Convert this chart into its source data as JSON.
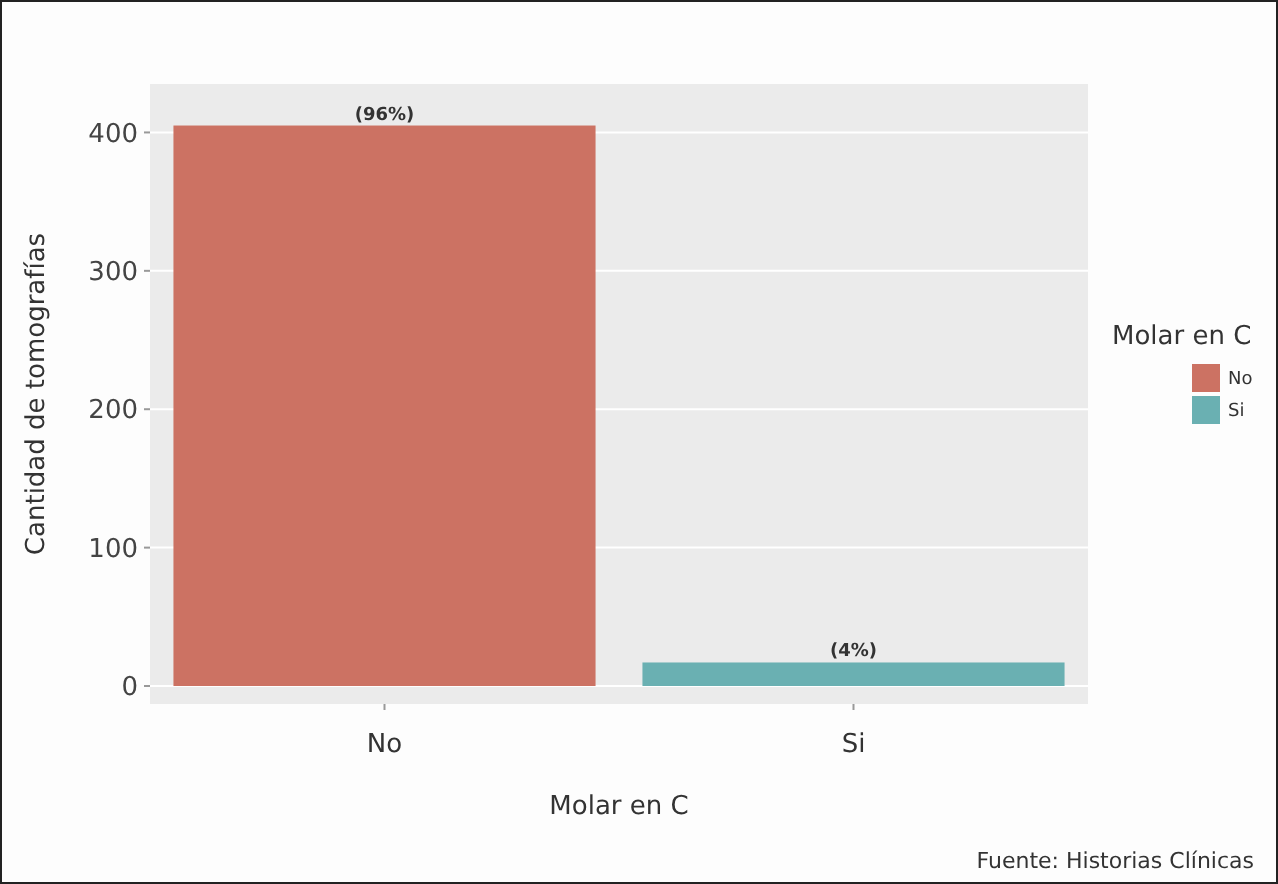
{
  "chart_data": {
    "type": "bar",
    "xlabel": "Molar en C",
    "ylabel": "Cantidad de tomografías",
    "legend_title": "Molar en C",
    "categories": [
      "No",
      "Si"
    ],
    "series": [
      {
        "name": "No",
        "color": "#cc7263",
        "values": [
          405,
          null
        ]
      },
      {
        "name": "Si",
        "color": "#6ab0b2",
        "values": [
          null,
          17
        ]
      }
    ],
    "ylim": [
      -13,
      435
    ],
    "yticks": [
      0,
      100,
      200,
      300,
      400
    ],
    "grid": "y",
    "legend": "right",
    "annotations": [
      {
        "text": "(96%)",
        "x": "No",
        "y": 405
      },
      {
        "text": "(4%)",
        "x": "Si",
        "y": 17
      },
      "Fuente: Historias Clínicas"
    ]
  }
}
